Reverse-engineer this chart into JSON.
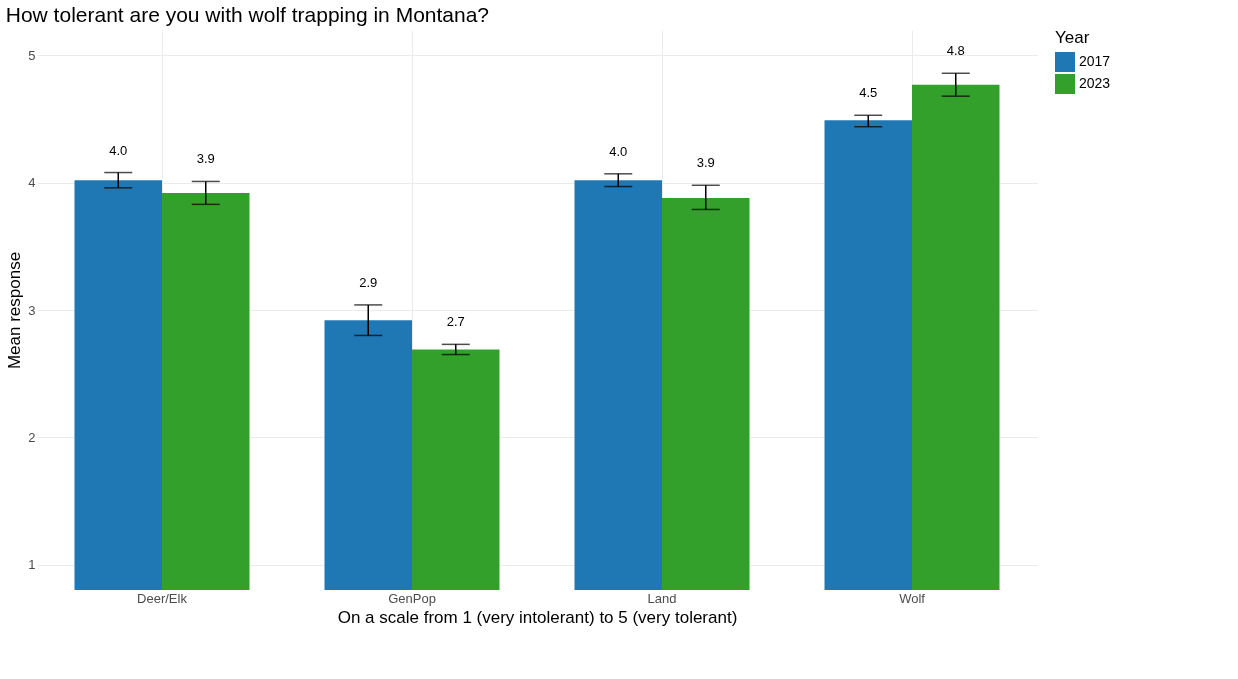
{
  "chart_data": {
    "type": "bar",
    "title": "How tolerant are you with wolf trapping in Montana?",
    "xlabel": "On a scale from 1 (very intolerant) to 5 (very tolerant)",
    "ylabel": "Mean response",
    "legend_title": "Year",
    "categories": [
      "Deer/Elk",
      "GenPop",
      "Land",
      "Wolf"
    ],
    "series": [
      {
        "name": "2017",
        "color": "#1f78b4",
        "values": [
          4.02,
          2.92,
          4.02,
          4.49
        ],
        "errors": [
          [
            3.96,
            4.08
          ],
          [
            2.8,
            3.04
          ],
          [
            3.97,
            4.07
          ],
          [
            4.44,
            4.53
          ]
        ],
        "value_labels": [
          "4.0",
          "2.9",
          "4.0",
          "4.5"
        ]
      },
      {
        "name": "2023",
        "color": "#33a02c",
        "values": [
          3.92,
          2.69,
          3.88,
          4.77
        ],
        "errors": [
          [
            3.83,
            4.01
          ],
          [
            2.65,
            2.73
          ],
          [
            3.79,
            3.98
          ],
          [
            4.68,
            4.86
          ]
        ],
        "value_labels": [
          "3.9",
          "2.7",
          "3.9",
          "4.8"
        ]
      }
    ],
    "ylim": [
      0.8,
      5.2
    ],
    "yticks": [
      1,
      2,
      3,
      4,
      5
    ],
    "grid": true,
    "legend": "right"
  }
}
